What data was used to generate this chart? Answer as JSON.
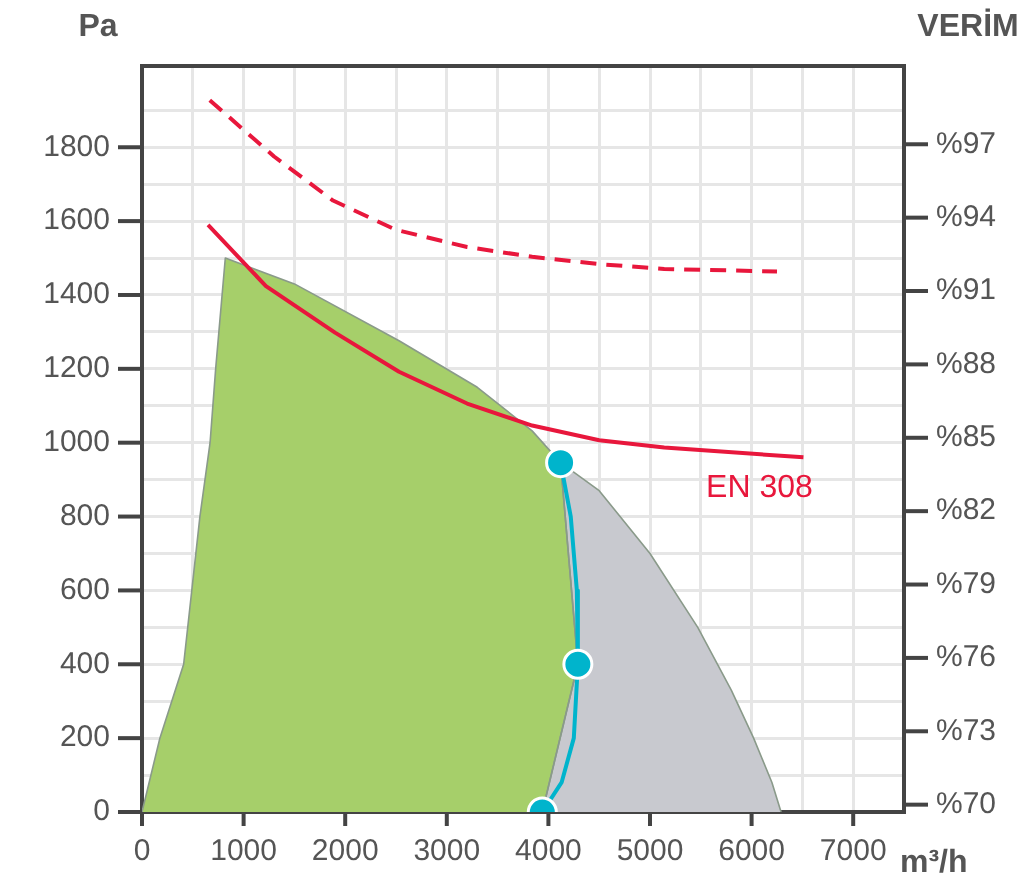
{
  "chart_data": {
    "type": "line",
    "xlabel": "m³/h",
    "ylabel": "Pa",
    "y2label": "VERİM",
    "xlim": [
      0,
      7500
    ],
    "xticks": [
      0,
      {
        "value": 500,
        "label": null
      },
      1000,
      {
        "value": 1500,
        "label": null
      },
      2000,
      {
        "value": 2500,
        "label": null
      },
      3000,
      {
        "value": 3500,
        "label": null
      },
      4000,
      {
        "value": 4500,
        "label": null
      },
      5000,
      {
        "value": 5500,
        "label": null
      },
      6000,
      {
        "value": 6500,
        "label": null
      },
      7000
    ],
    "ylim": [
      0,
      2020
    ],
    "yticks": [
      0,
      {
        "value": 100,
        "label": null
      },
      200,
      {
        "value": 300,
        "label": null
      },
      400,
      {
        "value": 500,
        "label": null
      },
      600,
      {
        "value": 700,
        "label": null
      },
      800,
      {
        "value": 900,
        "label": null
      },
      1000,
      {
        "value": 1100,
        "label": null
      },
      1200,
      {
        "value": 1300,
        "label": null
      },
      1400,
      {
        "value": 1500,
        "label": null
      },
      1600,
      {
        "value": 1700,
        "label": null
      },
      1800,
      {
        "value": 1900,
        "label": null
      }
    ],
    "y2lim": [
      69.7,
      100.2
    ],
    "y2ticks": [
      {
        "value": 70,
        "label": "%70"
      },
      {
        "value": 73,
        "label": "%73"
      },
      {
        "value": 76,
        "label": "%76"
      },
      {
        "value": 79,
        "label": "%79"
      },
      {
        "value": 82,
        "label": "%82"
      },
      {
        "value": 85,
        "label": "%85"
      },
      {
        "value": 88,
        "label": "%88"
      },
      {
        "value": 91,
        "label": "%91"
      },
      {
        "value": 94,
        "label": "%94"
      },
      {
        "value": 97,
        "label": "%97"
      }
    ],
    "grid": true,
    "legend": false,
    "series": [
      {
        "type": "area",
        "color": "#c8c9cf",
        "x": [
          3940,
          4290,
          4120,
          4500,
          5000,
          5470,
          5800,
          6020,
          6200,
          6290
        ],
        "values": [
          0,
          400,
          946,
          870,
          700,
          500,
          330,
          200,
          80,
          0
        ]
      },
      {
        "type": "area",
        "color": "#a6cf6a",
        "x": [
          0,
          176,
          410,
          570,
          670,
          725,
          820,
          1500,
          2530,
          3300,
          3840,
          4120,
          4290,
          3940
        ],
        "values": [
          0,
          200,
          400,
          800,
          1000,
          1200,
          1500,
          1430,
          1276,
          1150,
          1032,
          946,
          400,
          0
        ]
      },
      {
        "type": "line",
        "color": "#00b4cc",
        "marker": "none",
        "x": [
          4120,
          4220,
          4280,
          4290,
          4250,
          4130,
          3940
        ],
        "values": [
          946,
          800,
          600,
          400,
          200,
          80,
          0
        ]
      },
      {
        "type": "scatter",
        "color": "#00b4cc",
        "marker": "circle",
        "x": [
          4120,
          4290,
          3940
        ],
        "values": [
          946,
          400,
          0
        ]
      },
      {
        "type": "line",
        "name": "EN 308",
        "axis": "y2",
        "color": "#e8173c",
        "marker": "none",
        "line_style": "solid",
        "x": [
          650,
          1220,
          1900,
          2530,
          3200,
          3840,
          4500,
          5140,
          6510
        ],
        "values": [
          93.7,
          91.2,
          89.3,
          87.7,
          86.4,
          85.5,
          84.9,
          84.6,
          84.2
        ]
      },
      {
        "type": "line",
        "axis": "y2",
        "color": "#e8173c",
        "marker": "none",
        "line_style": "dashed",
        "x": [
          667,
          1300,
          1880,
          2500,
          3200,
          3840,
          4500,
          5140,
          6250
        ],
        "values": [
          98.8,
          96.5,
          94.7,
          93.5,
          92.8,
          92.4,
          92.1,
          91.9,
          91.8
        ]
      }
    ]
  }
}
